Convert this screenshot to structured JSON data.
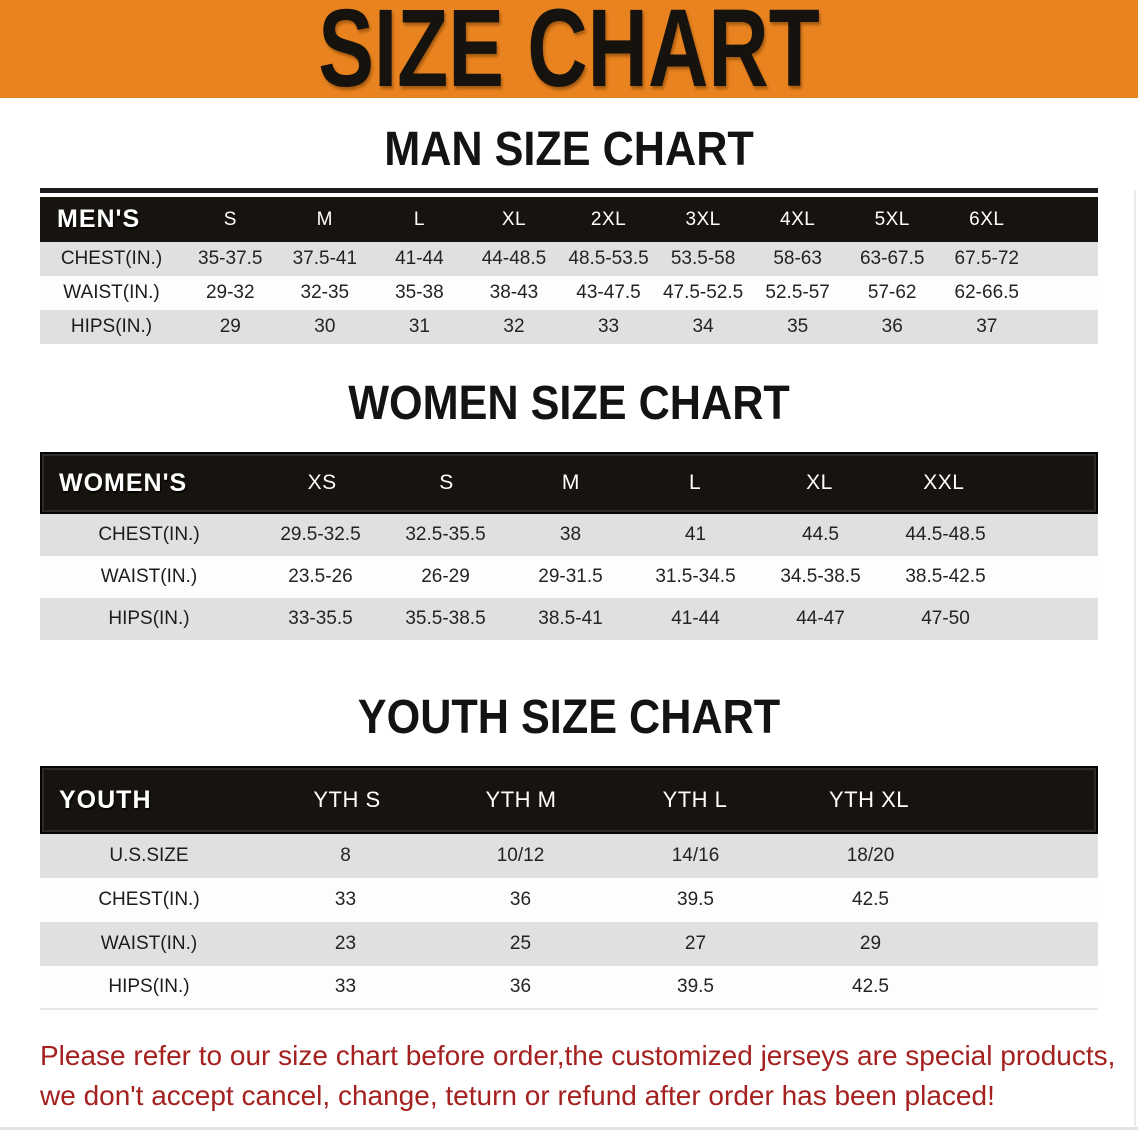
{
  "banner": {
    "title": "SIZE CHART",
    "bg_color": "#e8831f",
    "text_color": "#16120d"
  },
  "sections": [
    {
      "title": "MAN SIZE CHART",
      "table": {
        "header_label": "MEN'S",
        "columns": [
          "S",
          "M",
          "L",
          "XL",
          "2XL",
          "3XL",
          "4XL",
          "5XL",
          "6XL"
        ],
        "rows": [
          {
            "label": "CHEST(IN.)",
            "values": [
              "35-37.5",
              "37.5-41",
              "41-44",
              "44-48.5",
              "48.5-53.5",
              "53.5-58",
              "58-63",
              "63-67.5",
              "67.5-72"
            ]
          },
          {
            "label": "WAIST(IN.)",
            "values": [
              "29-32",
              "32-35",
              "35-38",
              "38-43",
              "43-47.5",
              "47.5-52.5",
              "52.5-57",
              "57-62",
              "62-66.5"
            ]
          },
          {
            "label": "HIPS(IN.)",
            "values": [
              "29",
              "30",
              "31",
              "32",
              "33",
              "34",
              "35",
              "36",
              "37"
            ]
          }
        ]
      }
    },
    {
      "title": "WOMEN SIZE CHART",
      "table": {
        "header_label": "WOMEN'S",
        "columns": [
          "XS",
          "S",
          "M",
          "L",
          "XL",
          "XXL"
        ],
        "rows": [
          {
            "label": "CHEST(IN.)",
            "values": [
              "29.5-32.5",
              "32.5-35.5",
              "38",
              "41",
              "44.5",
              "44.5-48.5"
            ]
          },
          {
            "label": "WAIST(IN.)",
            "values": [
              "23.5-26",
              "26-29",
              "29-31.5",
              "31.5-34.5",
              "34.5-38.5",
              "38.5-42.5"
            ]
          },
          {
            "label": "HIPS(IN.)",
            "values": [
              "33-35.5",
              "35.5-38.5",
              "38.5-41",
              "41-44",
              "44-47",
              "47-50"
            ]
          }
        ]
      }
    },
    {
      "title": "YOUTH SIZE CHART",
      "table": {
        "header_label": "YOUTH",
        "columns": [
          "YTH S",
          "YTH M",
          "YTH L",
          "YTH XL"
        ],
        "rows": [
          {
            "label": "U.S.SIZE",
            "values": [
              "8",
              "10/12",
              "14/16",
              "18/20"
            ]
          },
          {
            "label": "CHEST(IN.)",
            "values": [
              "33",
              "36",
              "39.5",
              "42.5"
            ]
          },
          {
            "label": "WAIST(IN.)",
            "values": [
              "23",
              "25",
              "27",
              "29"
            ]
          },
          {
            "label": "HIPS(IN.)",
            "values": [
              "33",
              "36",
              "39.5",
              "42.5"
            ]
          }
        ]
      }
    }
  ],
  "footer": {
    "line1": "Please refer to our size chart before order,the customized jerseys are special products,",
    "line2": "we don't accept cancel, change, teturn or refund after order has been placed!",
    "text_color": "#a5211f"
  },
  "colors": {
    "banner_orange": "#e8831f",
    "table_header_bar": "#17130e",
    "row_stripe_gray": "#e0e0e0",
    "row_stripe_white": "#fdfdfd",
    "notice_red": "#a5211f"
  }
}
